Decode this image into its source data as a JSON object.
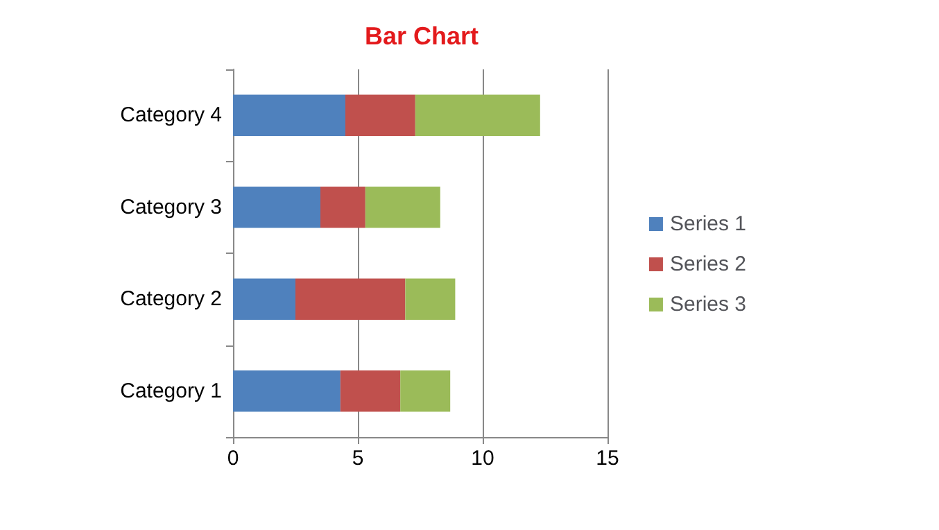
{
  "chart_data": {
    "type": "bar",
    "title": "Bar Chart",
    "orientation": "horizontal",
    "stacked": true,
    "categories": [
      "Category 4",
      "Category 3",
      "Category 2",
      "Category 1"
    ],
    "series": [
      {
        "name": "Series 1",
        "color": "#4f81bd",
        "values": [
          4.5,
          3.5,
          2.5,
          4.3
        ]
      },
      {
        "name": "Series 2",
        "color": "#c0504d",
        "values": [
          2.8,
          1.8,
          4.4,
          2.4
        ]
      },
      {
        "name": "Series 3",
        "color": "#9bbb59",
        "values": [
          5,
          3,
          2,
          2
        ]
      }
    ],
    "xlim": [
      0,
      15
    ],
    "xticks": [
      0,
      5,
      10,
      15
    ],
    "grid": "x",
    "legend": "right"
  }
}
